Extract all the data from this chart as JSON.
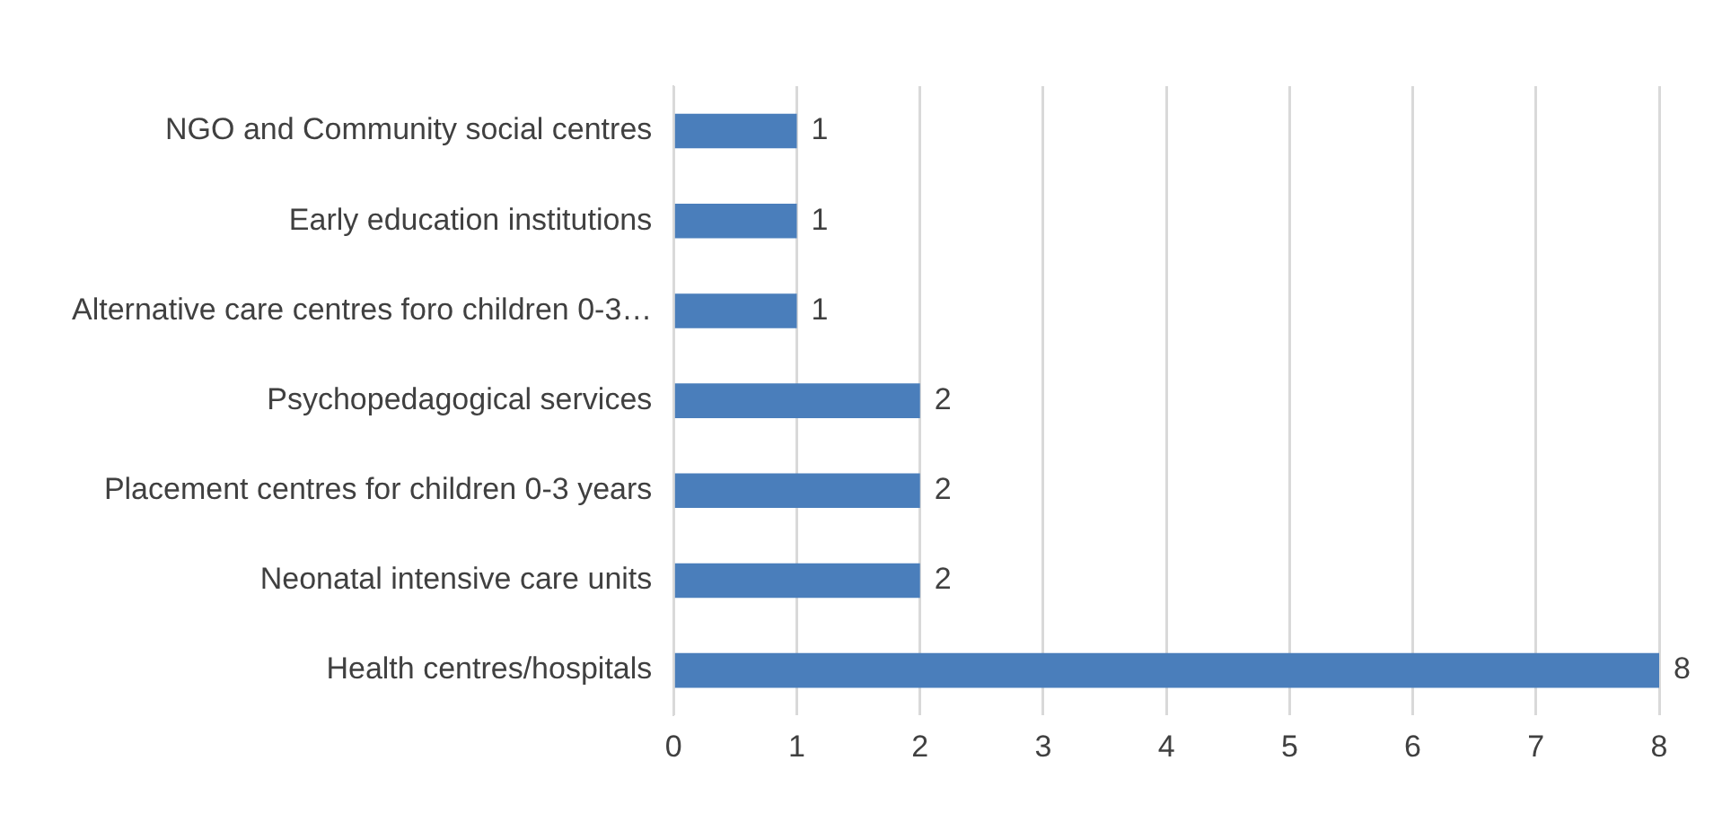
{
  "chart_data": {
    "type": "bar",
    "orientation": "horizontal",
    "categories": [
      "NGO and Community social centres",
      "Early education institutions",
      "Alternative care centres foro children 0-3…",
      "Psychopedagogical services",
      "Placement centres for children 0-3 years",
      "Neonatal intensive care units",
      "Health centres/hospitals"
    ],
    "values": [
      1,
      1,
      1,
      2,
      2,
      2,
      8
    ],
    "color": "#4a7ebb",
    "xlim": [
      0,
      8
    ],
    "xticks": [
      0,
      1,
      2,
      3,
      4,
      5,
      6,
      7,
      8
    ],
    "grid": "x",
    "data_labels": true,
    "legend": false
  }
}
